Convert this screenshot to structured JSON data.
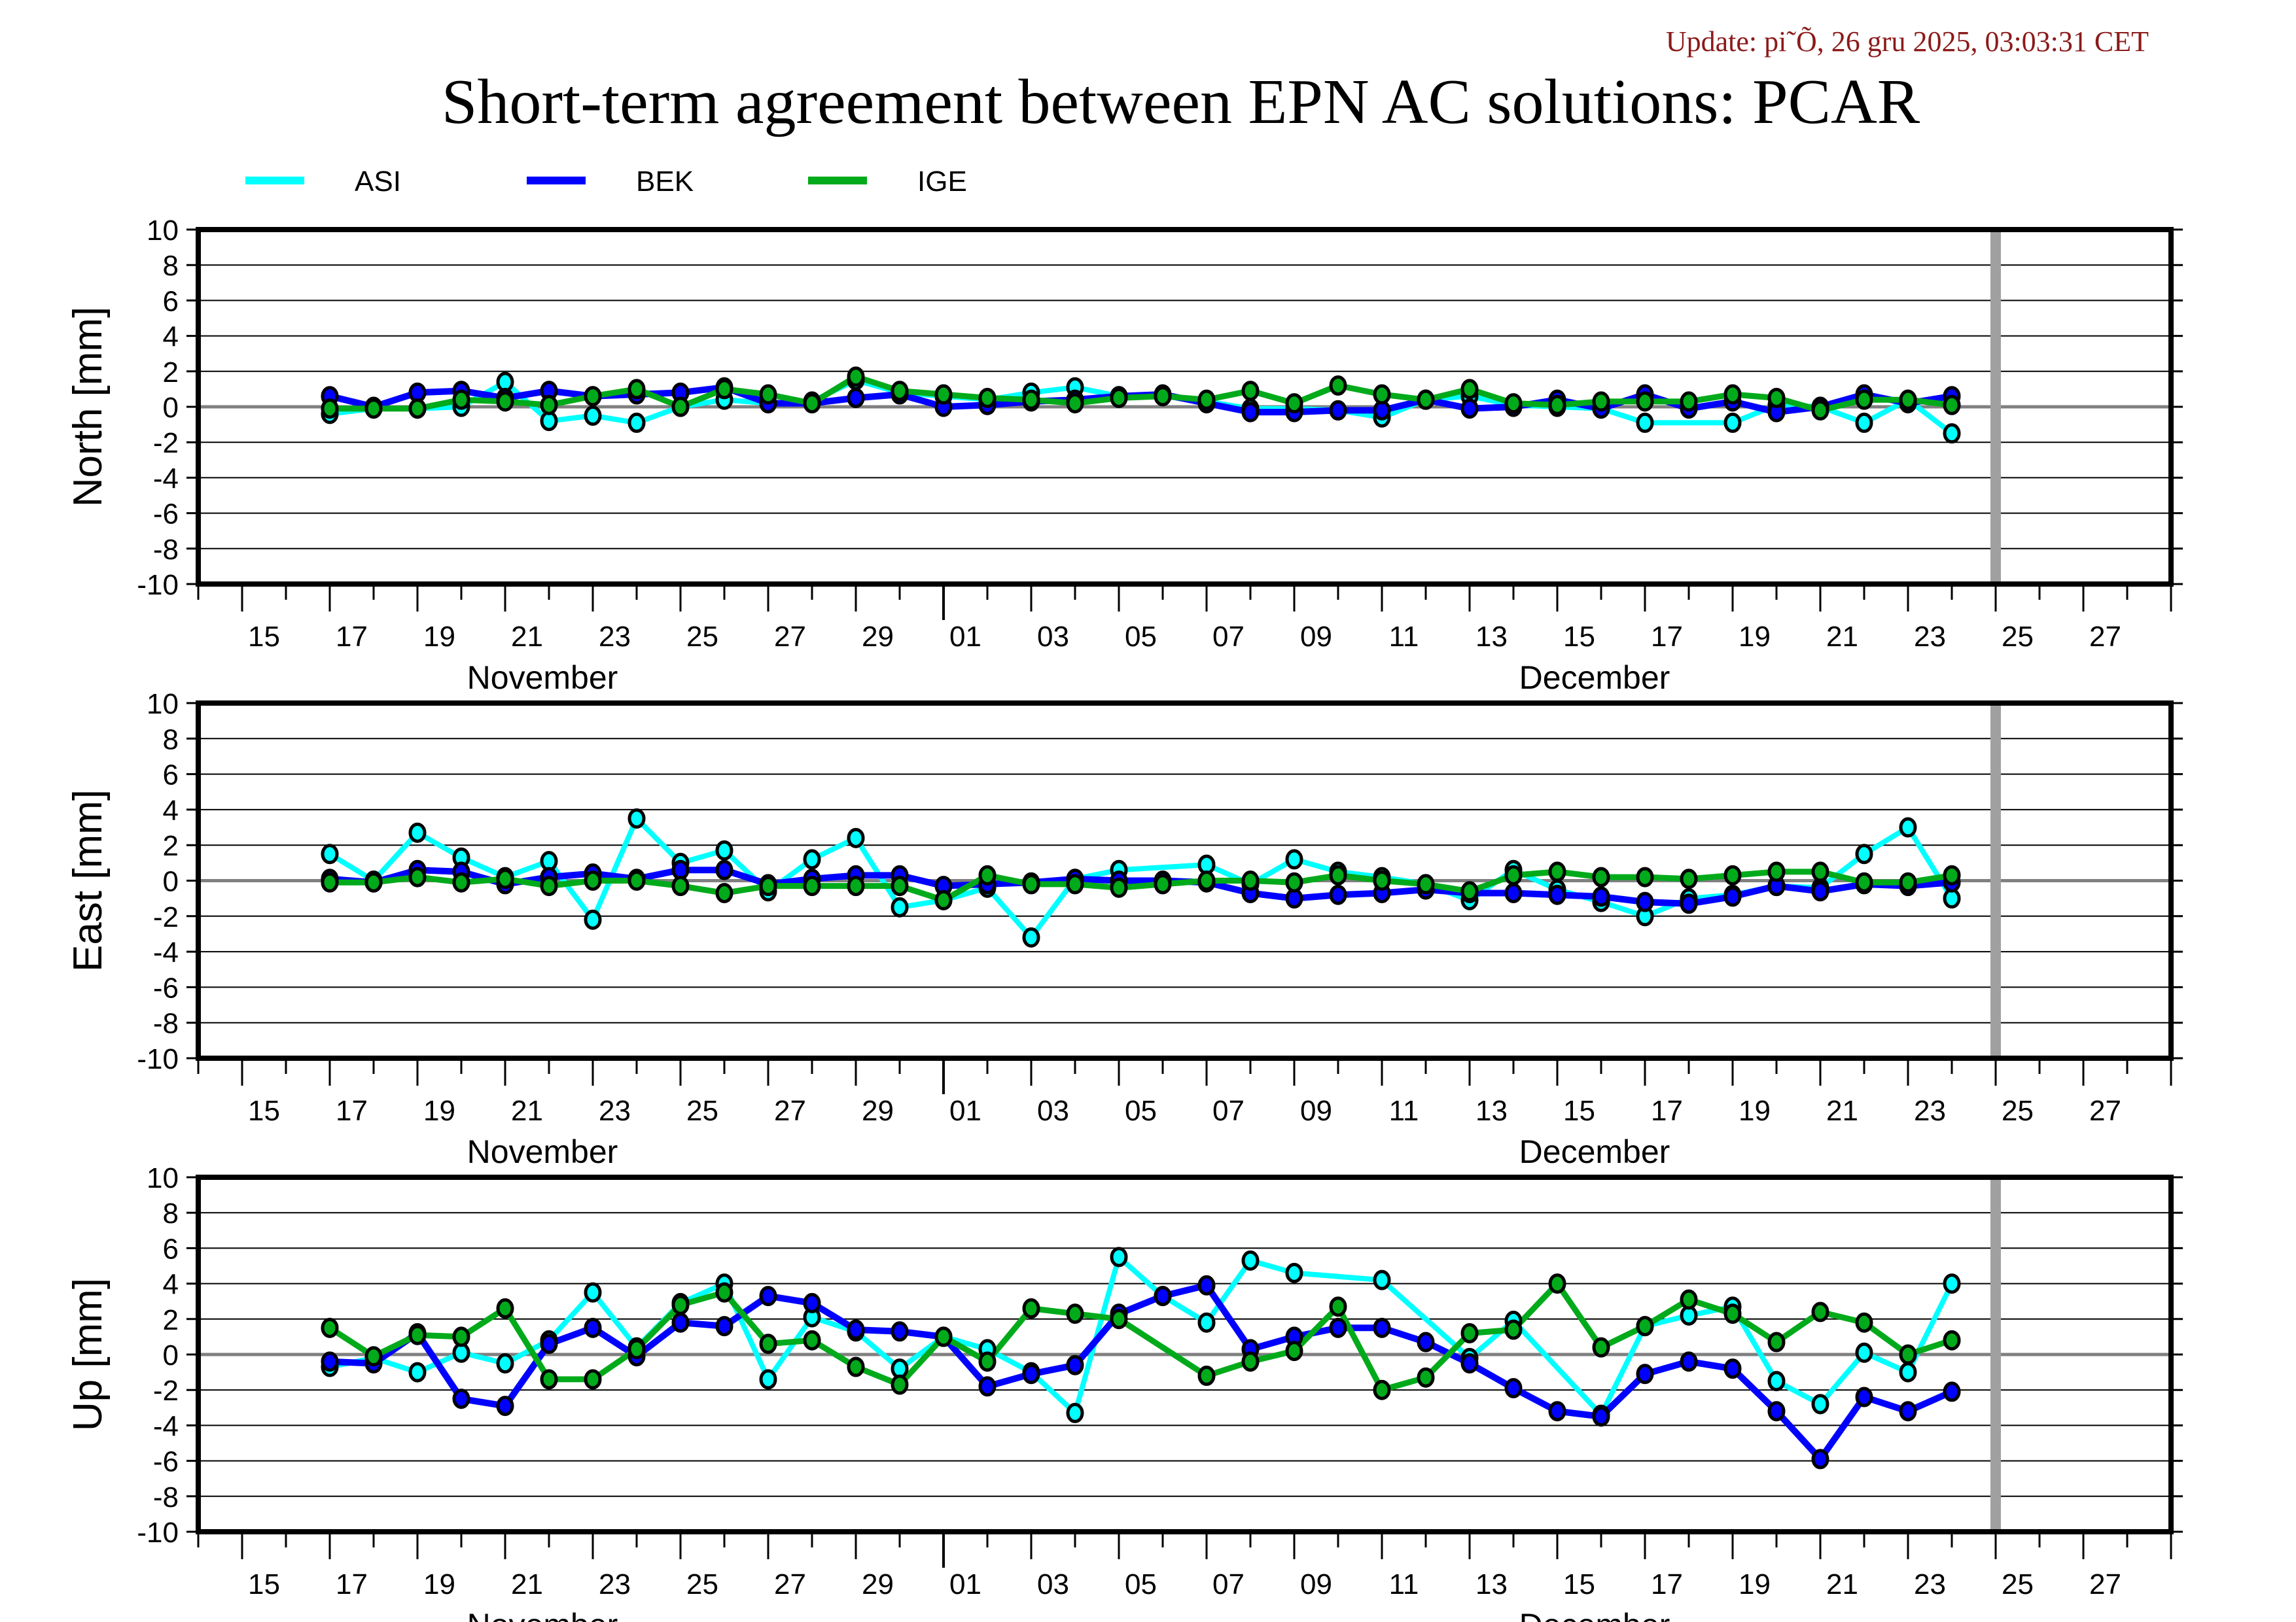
{
  "update_text": "Update: pi˜Õ, 26 gru 2025, 03:03:31 CET",
  "chart_data": {
    "type": "line",
    "title": "Short-term agreement between EPN AC solutions: PCAR",
    "legend": {
      "placement": "top-left",
      "entries": [
        {
          "name": "ASI",
          "color": "#00ffff"
        },
        {
          "name": "BEK",
          "color": "#0000ff"
        },
        {
          "name": "IGE",
          "color": "#00aa1a"
        }
      ]
    },
    "x_axis": {
      "start": "2025-11-14",
      "end": "2025-12-29",
      "tick_labels": [
        "15",
        "17",
        "19",
        "21",
        "23",
        "25",
        "27",
        "29",
        "01",
        "03",
        "05",
        "07",
        "09",
        "11",
        "13",
        "15",
        "17",
        "19",
        "21",
        "23",
        "25",
        "27"
      ],
      "month_labels": [
        "November",
        "December"
      ],
      "marker_line_date": "2025-12-25"
    },
    "x": [
      "2025-11-17",
      "2025-11-18",
      "2025-11-19",
      "2025-11-20",
      "2025-11-21",
      "2025-11-22",
      "2025-11-23",
      "2025-11-24",
      "2025-11-25",
      "2025-11-26",
      "2025-11-27",
      "2025-11-28",
      "2025-11-29",
      "2025-11-30",
      "2025-12-01",
      "2025-12-02",
      "2025-12-03",
      "2025-12-04",
      "2025-12-05",
      "2025-12-06",
      "2025-12-07",
      "2025-12-08",
      "2025-12-09",
      "2025-12-10",
      "2025-12-11",
      "2025-12-12",
      "2025-12-13",
      "2025-12-14",
      "2025-12-15",
      "2025-12-16",
      "2025-12-17",
      "2025-12-18",
      "2025-12-19",
      "2025-12-20",
      "2025-12-21",
      "2025-12-22",
      "2025-12-23",
      "2025-12-24"
    ],
    "panels": [
      {
        "ylabel": "North [mm]",
        "ylim": [
          -10,
          10
        ],
        "yticks": [
          "10",
          "8",
          "6",
          "4",
          "2",
          "0",
          "-2",
          "-4",
          "-6",
          "-8",
          "-10"
        ],
        "grid": true,
        "series": [
          {
            "name": "ASI",
            "values": [
              -0.4,
              -0.1,
              -0.1,
              0.0,
              1.4,
              -0.8,
              -0.5,
              -0.9,
              0.0,
              0.4,
              0.2,
              0.3,
              1.5,
              0.8,
              0.6,
              0.4,
              0.8,
              1.1,
              0.6,
              0.6,
              0.3,
              -0.1,
              -0.1,
              -0.2,
              -0.6,
              0.4,
              0.6,
              0.1,
              0.0,
              -0.1,
              -0.9,
              null,
              -0.9,
              0.1,
              0.0,
              -0.9,
              0.4,
              -1.5
            ]
          },
          {
            "name": "BEK",
            "values": [
              0.6,
              0.0,
              0.8,
              0.9,
              0.5,
              0.9,
              0.6,
              0.7,
              0.8,
              1.1,
              0.2,
              0.2,
              0.5,
              0.7,
              0.0,
              0.1,
              0.3,
              0.4,
              0.6,
              0.7,
              0.2,
              -0.3,
              -0.3,
              -0.2,
              -0.2,
              0.4,
              -0.1,
              0.0,
              0.4,
              -0.1,
              0.7,
              -0.1,
              0.3,
              -0.3,
              0.0,
              0.7,
              0.2,
              0.6
            ]
          },
          {
            "name": "IGE",
            "values": [
              -0.1,
              -0.1,
              -0.1,
              0.4,
              0.3,
              0.1,
              0.6,
              1.0,
              0.0,
              1.0,
              0.7,
              0.2,
              1.7,
              0.9,
              0.7,
              0.5,
              0.4,
              0.2,
              0.5,
              0.6,
              0.4,
              0.9,
              0.2,
              1.2,
              0.7,
              0.4,
              1.0,
              0.2,
              0.1,
              0.3,
              0.3,
              0.3,
              0.7,
              0.5,
              -0.2,
              0.4,
              0.4,
              0.1
            ]
          }
        ]
      },
      {
        "ylabel": "East [mm]",
        "ylim": [
          -10,
          10
        ],
        "yticks": [
          "10",
          "8",
          "6",
          "4",
          "2",
          "0",
          "-2",
          "-4",
          "-6",
          "-8",
          "-10"
        ],
        "grid": true,
        "series": [
          {
            "name": "ASI",
            "values": [
              1.5,
              0.0,
              2.7,
              1.3,
              0.2,
              1.1,
              -2.2,
              3.5,
              1.0,
              1.7,
              -0.6,
              1.2,
              2.4,
              -1.5,
              -1.1,
              -0.4,
              -3.2,
              0.1,
              0.6,
              null,
              0.9,
              -0.2,
              1.2,
              0.5,
              0.2,
              -0.2,
              -1.1,
              0.6,
              -0.5,
              -1.2,
              -2.0,
              -1.0,
              -0.8,
              -0.3,
              -0.4,
              1.5,
              3.0,
              -1.0
            ]
          },
          {
            "name": "BEK",
            "values": [
              0.1,
              -0.1,
              0.6,
              0.5,
              -0.2,
              0.2,
              0.4,
              0.1,
              0.6,
              0.6,
              -0.2,
              0.1,
              0.3,
              0.3,
              -0.3,
              -0.2,
              -0.1,
              0.1,
              0.0,
              0.0,
              -0.1,
              -0.7,
              -1.0,
              -0.8,
              -0.7,
              -0.5,
              -0.7,
              -0.7,
              -0.8,
              -0.9,
              -1.2,
              -1.3,
              -0.9,
              -0.3,
              -0.6,
              -0.2,
              -0.3,
              -0.1
            ]
          },
          {
            "name": "IGE",
            "values": [
              -0.1,
              -0.1,
              0.2,
              -0.1,
              0.1,
              -0.3,
              0.0,
              0.0,
              -0.3,
              -0.7,
              -0.3,
              -0.3,
              -0.3,
              -0.3,
              -1.1,
              0.3,
              -0.2,
              -0.2,
              -0.4,
              -0.2,
              0.0,
              0.0,
              -0.1,
              0.3,
              0.0,
              -0.2,
              -0.6,
              0.3,
              0.5,
              0.2,
              0.2,
              0.1,
              0.3,
              0.5,
              0.5,
              -0.1,
              -0.1,
              0.3
            ]
          }
        ]
      },
      {
        "ylabel": "Up [mm]",
        "ylim": [
          -10,
          10
        ],
        "yticks": [
          "10",
          "8",
          "6",
          "4",
          "2",
          "0",
          "-2",
          "-4",
          "-6",
          "-8",
          "-10"
        ],
        "grid": true,
        "series": [
          {
            "name": "ASI",
            "values": [
              -0.7,
              -0.2,
              -1.0,
              0.1,
              -0.5,
              0.8,
              3.5,
              0.4,
              2.9,
              4.0,
              -1.4,
              2.1,
              1.3,
              -0.8,
              1.0,
              0.3,
              -1.0,
              -3.3,
              5.5,
              3.3,
              1.8,
              5.3,
              4.6,
              null,
              4.2,
              null,
              -0.2,
              1.9,
              null,
              -3.4,
              1.6,
              2.2,
              2.7,
              -1.5,
              -2.8,
              0.1,
              -1.0,
              4.0
            ]
          },
          {
            "name": "BEK",
            "values": [
              -0.4,
              -0.5,
              1.2,
              -2.5,
              -2.9,
              0.6,
              1.5,
              -0.1,
              1.8,
              1.6,
              3.3,
              2.9,
              1.4,
              1.3,
              1.0,
              -1.8,
              -1.1,
              -0.6,
              2.3,
              3.3,
              3.9,
              0.3,
              1.0,
              1.5,
              1.5,
              0.7,
              -0.5,
              -1.9,
              -3.2,
              -3.5,
              -1.1,
              -0.4,
              -0.8,
              -3.2,
              -5.9,
              -2.4,
              -3.2,
              -2.1
            ]
          },
          {
            "name": "IGE",
            "values": [
              1.5,
              -0.1,
              1.1,
              1.0,
              2.6,
              -1.4,
              -1.4,
              0.3,
              2.8,
              3.5,
              0.6,
              0.8,
              -0.7,
              -1.7,
              1.0,
              -0.4,
              2.6,
              2.3,
              2.0,
              null,
              -1.2,
              -0.4,
              0.2,
              2.7,
              -2.0,
              -1.3,
              1.2,
              1.4,
              4.0,
              0.4,
              1.6,
              3.1,
              2.3,
              0.7,
              2.4,
              1.8,
              0.0,
              0.8
            ]
          }
        ]
      }
    ]
  }
}
